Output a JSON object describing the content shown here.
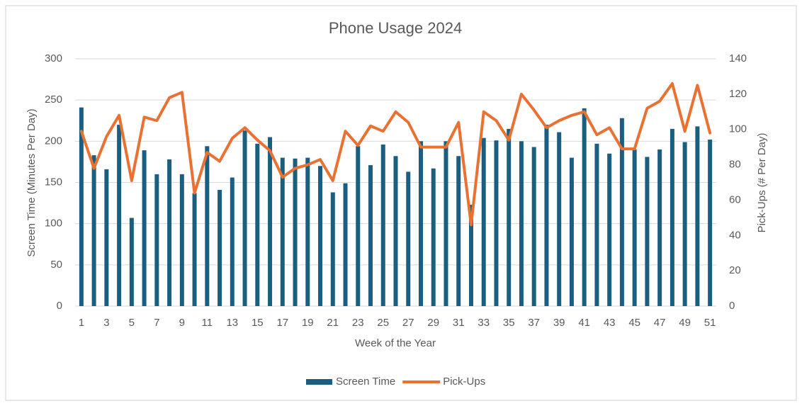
{
  "chart_data": {
    "type": "bar",
    "title": "Phone Usage 2024",
    "x_label": "Week of the Year",
    "y_label": "Screen Time (Minutes Per Day)",
    "y2_label": "Pick-Ups (# Per Day)",
    "categories": [
      1,
      null,
      3,
      null,
      5,
      null,
      7,
      null,
      9,
      null,
      11,
      null,
      13,
      null,
      15,
      null,
      17,
      null,
      19,
      null,
      21,
      null,
      23,
      null,
      25,
      null,
      27,
      null,
      29,
      null,
      31,
      null,
      33,
      null,
      35,
      null,
      37,
      null,
      39,
      null,
      41,
      null,
      43,
      null,
      45,
      null,
      47,
      null,
      49,
      null,
      51
    ],
    "series": [
      {
        "name": "Screen Time",
        "type": "bar",
        "color": "#1b5f80",
        "values": [
          241,
          183,
          166,
          220,
          107,
          189,
          160,
          178,
          160,
          137,
          194,
          141,
          156,
          213,
          197,
          205,
          180,
          179,
          180,
          170,
          138,
          149,
          194,
          171,
          196,
          182,
          163,
          200,
          167,
          200,
          182,
          123,
          204,
          201,
          215,
          200,
          193,
          220,
          211,
          180,
          240,
          197,
          185,
          228,
          190,
          181,
          190,
          215,
          199,
          218,
          202
        ]
      },
      {
        "name": "Pick-Ups",
        "type": "line",
        "axis": "y2",
        "color": "#e97132",
        "values": [
          99,
          78,
          96,
          108,
          71,
          107,
          105,
          118,
          121,
          64,
          87,
          82,
          95,
          101,
          94,
          88,
          73,
          78,
          80,
          83,
          71,
          99,
          91,
          102,
          99,
          110,
          104,
          90,
          90,
          90,
          104,
          46,
          110,
          105,
          94,
          120,
          111,
          101,
          105,
          108,
          110,
          97,
          101,
          89,
          89,
          112,
          116,
          126,
          99,
          125,
          98
        ]
      }
    ],
    "ylim": [
      0,
      300
    ],
    "yticks": [
      0,
      50,
      100,
      150,
      200,
      250,
      300
    ],
    "y2lim": [
      0,
      140
    ],
    "y2ticks": [
      0,
      20,
      40,
      60,
      80,
      100,
      120,
      140
    ],
    "grid": true,
    "legend": "bottom"
  }
}
